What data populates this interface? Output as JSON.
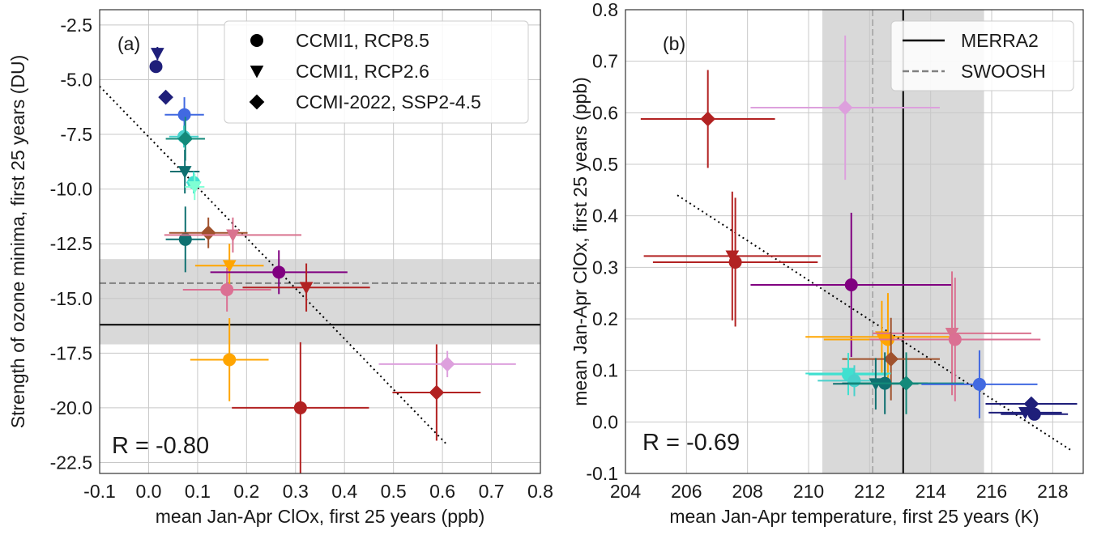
{
  "chart_data": [
    {
      "type": "scatter",
      "panel_label": "(a)",
      "xlabel": "mean Jan-Apr ClOx, first 25 years (ppb)",
      "ylabel": "Strength of ozone minima, first 25 years (DU)",
      "xlim": [
        -0.1,
        0.8
      ],
      "ylim": [
        -23.0,
        -1.8
      ],
      "xticks": [
        "-0.1",
        "0.0",
        "0.1",
        "0.2",
        "0.3",
        "0.4",
        "0.5",
        "0.6",
        "0.7",
        "0.8"
      ],
      "yticks": [
        "-2.5",
        "-5.0",
        "-7.5",
        "-10.0",
        "-12.5",
        "-15.0",
        "-17.5",
        "-20.0",
        "-22.5"
      ],
      "grid": true,
      "correlation_text": "R = -0.80",
      "reference": {
        "line": -16.2,
        "band": [
          -17.1,
          -13.2
        ],
        "dashed": -14.3
      },
      "fit": {
        "x": [
          -0.1,
          0.61
        ],
        "y": [
          -5.3,
          -21.7
        ]
      },
      "legend": {
        "placement": "top-right",
        "entries": [
          {
            "marker": "circle",
            "label": "CCMI1, RCP8.5"
          },
          {
            "marker": "triangle-down",
            "label": "CCMI1, RCP2.6"
          },
          {
            "marker": "diamond",
            "label": "CCMI-2022, SSP2-4.5"
          }
        ]
      },
      "points": [
        {
          "x": 0.015,
          "y": -4.4,
          "marker": "circle",
          "color": "#1f1f7a",
          "yerr": 0.2,
          "xerr": 0.005
        },
        {
          "x": 0.018,
          "y": -3.8,
          "marker": "triangle-down",
          "color": "#1f1f7a",
          "yerr": 0.3,
          "xerr": 0.005
        },
        {
          "x": 0.035,
          "y": -5.8,
          "marker": "diamond",
          "color": "#1f1f7a",
          "yerr": 0.2,
          "xerr": 0.01
        },
        {
          "x": 0.073,
          "y": -6.6,
          "marker": "circle",
          "color": "#4169e1",
          "yerr": 0.8,
          "xerr": 0.04
        },
        {
          "x": 0.072,
          "y": -7.6,
          "marker": "circle",
          "color": "#48d1cc",
          "yerr": 0.5,
          "xerr": 0.03
        },
        {
          "x": 0.075,
          "y": -7.7,
          "marker": "diamond",
          "color": "#138a7a",
          "yerr": 1.0,
          "xerr": 0.04
        },
        {
          "x": 0.074,
          "y": -9.2,
          "marker": "triangle-down",
          "color": "#0f7070",
          "yerr": 1.0,
          "xerr": 0.03
        },
        {
          "x": 0.092,
          "y": -9.7,
          "marker": "circle",
          "color": "#40e0d0",
          "yerr": 0.5,
          "xerr": 0.015
        },
        {
          "x": 0.094,
          "y": -9.9,
          "marker": "triangle-down",
          "color": "#7fffd4",
          "yerr": 0.6,
          "xerr": 0.02
        },
        {
          "x": 0.075,
          "y": -12.3,
          "marker": "circle",
          "color": "#0f7070",
          "yerr": 1.5,
          "xerr": 0.04
        },
        {
          "x": 0.122,
          "y": -12.0,
          "marker": "diamond",
          "color": "#a0522d",
          "yerr": 0.7,
          "xerr": 0.08
        },
        {
          "x": 0.172,
          "y": -12.1,
          "marker": "triangle-down",
          "color": "#d9738f",
          "yerr": 0.8,
          "xerr": 0.14
        },
        {
          "x": 0.165,
          "y": -13.5,
          "marker": "triangle-down",
          "color": "#ffa500",
          "yerr": 1.0,
          "xerr": 0.07
        },
        {
          "x": 0.16,
          "y": -14.6,
          "marker": "circle",
          "color": "#db7093",
          "yerr": 1.0,
          "xerr": 0.09
        },
        {
          "x": 0.266,
          "y": -13.8,
          "marker": "circle",
          "color": "#800080",
          "yerr": 1.0,
          "xerr": 0.14
        },
        {
          "x": 0.322,
          "y": -14.5,
          "marker": "triangle-down",
          "color": "#b22222",
          "yerr": 1.1,
          "xerr": 0.13
        },
        {
          "x": 0.165,
          "y": -17.8,
          "marker": "circle",
          "color": "#ffa500",
          "yerr": 1.9,
          "xerr": 0.08
        },
        {
          "x": 0.31,
          "y": -20.0,
          "marker": "circle",
          "color": "#b22222",
          "yerr": 3.0,
          "xerr": 0.14
        },
        {
          "x": 0.588,
          "y": -19.3,
          "marker": "diamond",
          "color": "#b22222",
          "yerr": 2.2,
          "xerr": 0.09
        },
        {
          "x": 0.61,
          "y": -18.0,
          "marker": "diamond",
          "color": "#dda0dd",
          "yerr": 0.6,
          "xerr": 0.14
        }
      ]
    },
    {
      "type": "scatter",
      "panel_label": "(b)",
      "xlabel": "mean Jan-Apr temperature, first 25 years (K)",
      "ylabel": "mean Jan-Apr ClOx, first 25 years (ppb)",
      "xlim": [
        204,
        219
      ],
      "ylim": [
        -0.1,
        0.8
      ],
      "xticks": [
        "204",
        "206",
        "208",
        "210",
        "212",
        "214",
        "216",
        "218"
      ],
      "yticks": [
        "-0.1",
        "0.0",
        "0.1",
        "0.2",
        "0.3",
        "0.4",
        "0.5",
        "0.6",
        "0.7",
        "0.8"
      ],
      "grid": true,
      "correlation_text": "R = -0.69",
      "reference": {
        "line": 213.1,
        "band": [
          210.45,
          215.75
        ],
        "dashed": 212.1
      },
      "fit": {
        "x": [
          205.7,
          218.6
        ],
        "y": [
          0.44,
          -0.055
        ]
      },
      "legend": {
        "placement": "top-right",
        "entries": [
          {
            "style": "solid",
            "label": "MERRA2"
          },
          {
            "style": "dashed",
            "label": "SWOOSH"
          }
        ]
      },
      "points": [
        {
          "x": 206.7,
          "y": 0.588,
          "marker": "diamond",
          "color": "#b22222",
          "yerr": 0.095,
          "xerr": 2.2
        },
        {
          "x": 211.2,
          "y": 0.61,
          "marker": "diamond",
          "color": "#dda0dd",
          "yerr": 0.14,
          "xerr": 3.1
        },
        {
          "x": 207.5,
          "y": 0.322,
          "marker": "triangle-down",
          "color": "#b22222",
          "yerr": 0.125,
          "xerr": 2.9
        },
        {
          "x": 207.6,
          "y": 0.31,
          "marker": "circle",
          "color": "#b22222",
          "yerr": 0.125,
          "xerr": 2.7
        },
        {
          "x": 211.4,
          "y": 0.266,
          "marker": "circle",
          "color": "#800080",
          "yerr": 0.14,
          "xerr": 3.3
        },
        {
          "x": 212.4,
          "y": 0.165,
          "marker": "triangle-down",
          "color": "#ffa500",
          "yerr": 0.07,
          "xerr": 2.5
        },
        {
          "x": 212.6,
          "y": 0.16,
          "marker": "circle",
          "color": "#ffa500",
          "yerr": 0.09,
          "xerr": 2.1
        },
        {
          "x": 214.7,
          "y": 0.172,
          "marker": "triangle-down",
          "color": "#d9738f",
          "yerr": 0.12,
          "xerr": 2.6
        },
        {
          "x": 214.8,
          "y": 0.16,
          "marker": "circle",
          "color": "#db7093",
          "yerr": 0.12,
          "xerr": 2.8
        },
        {
          "x": 212.7,
          "y": 0.122,
          "marker": "diamond",
          "color": "#a0522d",
          "yerr": 0.08,
          "xerr": 1.6
        },
        {
          "x": 211.3,
          "y": 0.094,
          "marker": "triangle-down",
          "color": "#40e0d0",
          "yerr": 0.04,
          "xerr": 1.4
        },
        {
          "x": 211.3,
          "y": 0.092,
          "marker": "circle",
          "color": "#40e0d0",
          "yerr": 0.04,
          "xerr": 1.3
        },
        {
          "x": 211.5,
          "y": 0.08,
          "marker": "circle",
          "color": "#48d1cc",
          "yerr": 0.03,
          "xerr": 1.2
        },
        {
          "x": 212.2,
          "y": 0.074,
          "marker": "triangle-down",
          "color": "#0f7070",
          "yerr": 0.05,
          "xerr": 1.4
        },
        {
          "x": 212.5,
          "y": 0.075,
          "marker": "circle",
          "color": "#0f7070",
          "yerr": 0.06,
          "xerr": 1.4
        },
        {
          "x": 213.2,
          "y": 0.075,
          "marker": "diamond",
          "color": "#138a7a",
          "yerr": 0.06,
          "xerr": 1.9
        },
        {
          "x": 215.6,
          "y": 0.073,
          "marker": "circle",
          "color": "#4169e1",
          "yerr": 0.066,
          "xerr": 1.9
        },
        {
          "x": 217.3,
          "y": 0.035,
          "marker": "diamond",
          "color": "#1f1f7a",
          "yerr": 0.01,
          "xerr": 1.5
        },
        {
          "x": 217.1,
          "y": 0.018,
          "marker": "triangle-down",
          "color": "#1f1f7a",
          "yerr": 0.005,
          "xerr": 1.2
        },
        {
          "x": 217.4,
          "y": 0.015,
          "marker": "circle",
          "color": "#1f1f7a",
          "yerr": 0.005,
          "xerr": 1.1
        }
      ]
    }
  ]
}
